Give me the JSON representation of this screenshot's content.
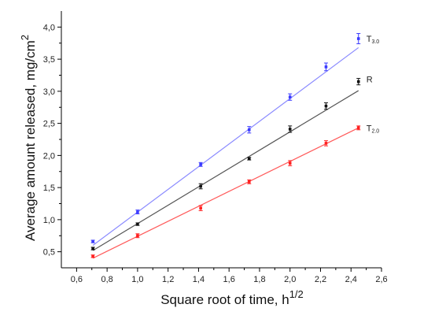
{
  "chart_data": {
    "type": "scatter",
    "title": "",
    "xlabel": "Square root of time, h",
    "xlabel_superscript": "1/2",
    "ylabel": "Average amount released, mg/cm",
    "ylabel_superscript": "2",
    "xlim": [
      0.5,
      2.6
    ],
    "ylim": [
      0.25,
      4.25
    ],
    "x_ticks": [
      "0,6",
      "0,8",
      "1,0",
      "1,2",
      "1,4",
      "1,6",
      "1,8",
      "2,0",
      "2,2",
      "2,4",
      "2,6"
    ],
    "x_tick_values": [
      0.6,
      0.8,
      1.0,
      1.2,
      1.4,
      1.6,
      1.8,
      2.0,
      2.2,
      2.4,
      2.6
    ],
    "y_ticks": [
      "0,5",
      "1,0",
      "1,5",
      "2,0",
      "2,5",
      "3,0",
      "3,5",
      "4,0"
    ],
    "y_tick_values": [
      0.5,
      1.0,
      1.5,
      2.0,
      2.5,
      3.0,
      3.5,
      4.0
    ],
    "grid": false,
    "series": [
      {
        "name": "T30",
        "label_main": "T",
        "label_sub": "3.0",
        "color": "#3a3aff",
        "line_color": "#8a8aff",
        "x": [
          0.707,
          1.0,
          1.414,
          1.732,
          2.0,
          2.236,
          2.449
        ],
        "y": [
          0.66,
          1.12,
          1.86,
          2.4,
          2.91,
          3.38,
          3.82
        ],
        "err": [
          0.02,
          0.03,
          0.03,
          0.05,
          0.05,
          0.06,
          0.08
        ],
        "fit": [
          [
            0.707,
            0.6
          ],
          [
            2.449,
            3.68
          ]
        ]
      },
      {
        "name": "R",
        "label_main": "R",
        "label_sub": "",
        "color": "#111111",
        "line_color": "#555555",
        "x": [
          0.707,
          1.0,
          1.414,
          1.732,
          2.0,
          2.236,
          2.449
        ],
        "y": [
          0.55,
          0.93,
          1.52,
          1.95,
          2.41,
          2.77,
          3.15
        ],
        "err": [
          0.02,
          0.02,
          0.04,
          0.02,
          0.05,
          0.05,
          0.05
        ],
        "fit": [
          [
            0.707,
            0.52
          ],
          [
            2.449,
            3.01
          ]
        ]
      },
      {
        "name": "T20",
        "label_main": "T",
        "label_sub": "2.0",
        "color": "#ff2020",
        "line_color": "#ff5a5a",
        "x": [
          0.707,
          1.0,
          1.414,
          1.732,
          2.0,
          2.236,
          2.449
        ],
        "y": [
          0.43,
          0.75,
          1.18,
          1.59,
          1.88,
          2.19,
          2.43
        ],
        "err": [
          0.02,
          0.03,
          0.04,
          0.03,
          0.04,
          0.04,
          0.03
        ],
        "fit": [
          [
            0.707,
            0.4
          ],
          [
            2.449,
            2.43
          ]
        ]
      }
    ]
  }
}
